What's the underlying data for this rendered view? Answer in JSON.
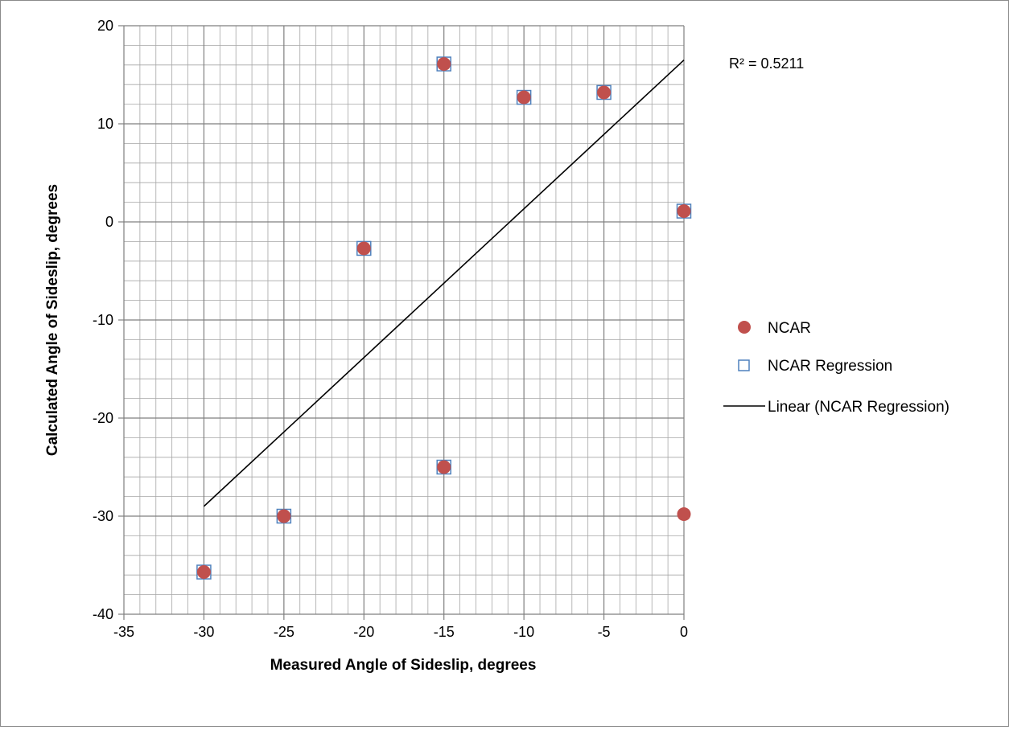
{
  "chart_data": {
    "type": "scatter",
    "title": "",
    "xlabel": "Measured Angle of Sideslip, degrees",
    "ylabel": "Calculated Angle of Sideslip, degrees",
    "xlim": [
      -35,
      0
    ],
    "ylim": [
      -40,
      20
    ],
    "x_ticks": [
      -35,
      -30,
      -25,
      -20,
      -15,
      -10,
      -5,
      0
    ],
    "y_ticks": [
      -40,
      -30,
      -20,
      -10,
      0,
      10,
      20
    ],
    "x_tick_labels": [
      "-35",
      "-30",
      "-25",
      "-20",
      "-15",
      "-10",
      "-5",
      "0"
    ],
    "y_tick_labels": [
      "-40",
      "-30",
      "-20",
      "-10",
      "0",
      "10",
      "20"
    ],
    "grid": "major and minor",
    "legend_position": "right",
    "series": [
      {
        "name": "NCAR",
        "marker": "filled-circle",
        "color": "#c0504d",
        "points": [
          {
            "x": -30,
            "y": -35.7
          },
          {
            "x": -25,
            "y": -30.0
          },
          {
            "x": -20,
            "y": -2.7
          },
          {
            "x": -15,
            "y": 16.1
          },
          {
            "x": -15,
            "y": -25.0
          },
          {
            "x": -10,
            "y": 12.7
          },
          {
            "x": -5,
            "y": 13.2
          },
          {
            "x": 0,
            "y": 1.1
          },
          {
            "x": 0,
            "y": -29.8
          }
        ]
      },
      {
        "name": "NCAR Regression",
        "marker": "open-square",
        "color": "#4f81bd",
        "points": [
          {
            "x": -30,
            "y": -35.7
          },
          {
            "x": -25,
            "y": -30.0
          },
          {
            "x": -20,
            "y": -2.7
          },
          {
            "x": -15,
            "y": 16.1
          },
          {
            "x": -15,
            "y": -25.0
          },
          {
            "x": -10,
            "y": 12.7
          },
          {
            "x": -5,
            "y": 13.2
          },
          {
            "x": 0,
            "y": 1.1
          }
        ]
      },
      {
        "name": "Linear (NCAR Regression)",
        "marker": "line",
        "color": "#000000",
        "points": [
          {
            "x": -30,
            "y": -29.0
          },
          {
            "x": 0,
            "y": 16.5
          }
        ]
      }
    ],
    "annotations": [
      {
        "text": "R² = 0.5211"
      }
    ]
  }
}
